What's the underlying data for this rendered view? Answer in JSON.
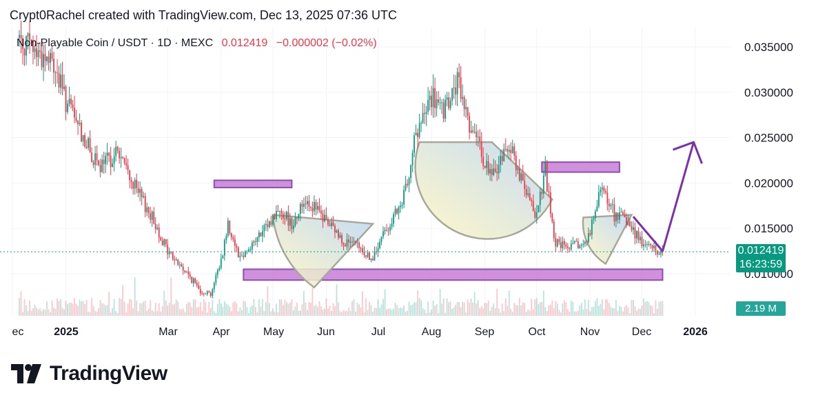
{
  "header": {
    "attribution": "Crypt0Rachel created with TradingView.com, Dec 13, 2025 07:36 UTC"
  },
  "legend": {
    "symbol": "Non-Playable Coin / USDT · 1D · MEXC",
    "price": "0.012419",
    "change": "−0.000002 (−0.02%)"
  },
  "price_tag": {
    "price": "0.012419",
    "countdown": "16:23:59"
  },
  "volume_tag": {
    "value": "2.19 M"
  },
  "branding": {
    "name": "TradingView"
  },
  "colors": {
    "up": "#089981",
    "down": "#f23645",
    "zone": "#c77dd7",
    "zone_border": "#7b2fa8",
    "arrow": "#7b2fa8"
  },
  "chart_data": {
    "type": "candlestick",
    "x_ticks": [
      "ec",
      "2025",
      "Mar",
      "Apr",
      "May",
      "Jun",
      "Jul",
      "Aug",
      "Sep",
      "Oct",
      "Nov",
      "Dec",
      "2026"
    ],
    "y_ticks": [
      "0.035000",
      "0.030000",
      "0.025000",
      "0.020000",
      "0.015000",
      "0.010000"
    ],
    "ylim": [
      0.0047,
      0.037
    ],
    "last_price": 0.012419,
    "price_path": [
      [
        "2024-12-05",
        0.036
      ],
      [
        "2024-12-15",
        0.0345
      ],
      [
        "2024-12-25",
        0.033
      ],
      [
        "2025-01-01",
        0.029
      ],
      [
        "2025-01-10",
        0.0255
      ],
      [
        "2025-01-20",
        0.0215
      ],
      [
        "2025-01-31",
        0.0235
      ],
      [
        "2025-02-10",
        0.0195
      ],
      [
        "2025-02-20",
        0.0162
      ],
      [
        "2025-03-01",
        0.0125
      ],
      [
        "2025-03-10",
        0.0105
      ],
      [
        "2025-03-20",
        0.0082
      ],
      [
        "2025-03-26",
        0.0078
      ],
      [
        "2025-04-01",
        0.0115
      ],
      [
        "2025-04-05",
        0.0155
      ],
      [
        "2025-04-12",
        0.0118
      ],
      [
        "2025-04-25",
        0.0145
      ],
      [
        "2025-05-05",
        0.0172
      ],
      [
        "2025-05-12",
        0.0155
      ],
      [
        "2025-05-20",
        0.0183
      ],
      [
        "2025-06-01",
        0.0158
      ],
      [
        "2025-06-10",
        0.0138
      ],
      [
        "2025-06-20",
        0.0128
      ],
      [
        "2025-06-28",
        0.0115
      ],
      [
        "2025-07-05",
        0.0148
      ],
      [
        "2025-07-15",
        0.0175
      ],
      [
        "2025-07-22",
        0.0245
      ],
      [
        "2025-08-01",
        0.0295
      ],
      [
        "2025-08-08",
        0.0275
      ],
      [
        "2025-08-16",
        0.031
      ],
      [
        "2025-08-25",
        0.0255
      ],
      [
        "2025-09-05",
        0.0205
      ],
      [
        "2025-09-15",
        0.0245
      ],
      [
        "2025-09-25",
        0.0185
      ],
      [
        "2025-10-01",
        0.0165
      ],
      [
        "2025-10-06",
        0.0215
      ],
      [
        "2025-10-11",
        0.0135
      ],
      [
        "2025-10-20",
        0.0128
      ],
      [
        "2025-10-30",
        0.0135
      ],
      [
        "2025-11-08",
        0.0195
      ],
      [
        "2025-11-15",
        0.0165
      ],
      [
        "2025-11-22",
        0.0158
      ],
      [
        "2025-12-01",
        0.0135
      ],
      [
        "2025-12-10",
        0.0125
      ],
      [
        "2025-12-13",
        0.012419
      ]
    ],
    "zones": [
      {
        "start": "2025-04-14",
        "end": "2025-12-13",
        "top": 0.0105,
        "bottom": 0.0093
      },
      {
        "start": "2025-03-28",
        "end": "2025-05-12",
        "top": 0.0203,
        "bottom": 0.0195
      },
      {
        "start": "2025-10-04",
        "end": "2025-11-18",
        "top": 0.0223,
        "bottom": 0.0212
      }
    ],
    "annotations": [
      {
        "type": "fan",
        "apex": [
          "2025-06-28",
          0.0155
        ],
        "arc": [
          [
            "2025-05-01",
            0.0165
          ],
          [
            "2025-05-25",
            0.0085
          ]
        ]
      },
      {
        "type": "fan",
        "apex": [
          "2025-09-05",
          0.0245
        ],
        "arc": [
          [
            "2025-07-25",
            0.0245
          ],
          [
            "2025-10-10",
            0.0182
          ]
        ]
      },
      {
        "type": "fan",
        "apex": [
          "2025-11-25",
          0.0165
        ],
        "arc": [
          [
            "2025-10-28",
            0.0162
          ],
          [
            "2025-11-10",
            0.0111
          ]
        ]
      },
      {
        "type": "path",
        "points": [
          [
            "2025-11-26",
            0.0163
          ],
          [
            "2025-12-13",
            0.0125
          ],
          [
            "2025-12-31",
            0.0245
          ]
        ]
      }
    ]
  }
}
